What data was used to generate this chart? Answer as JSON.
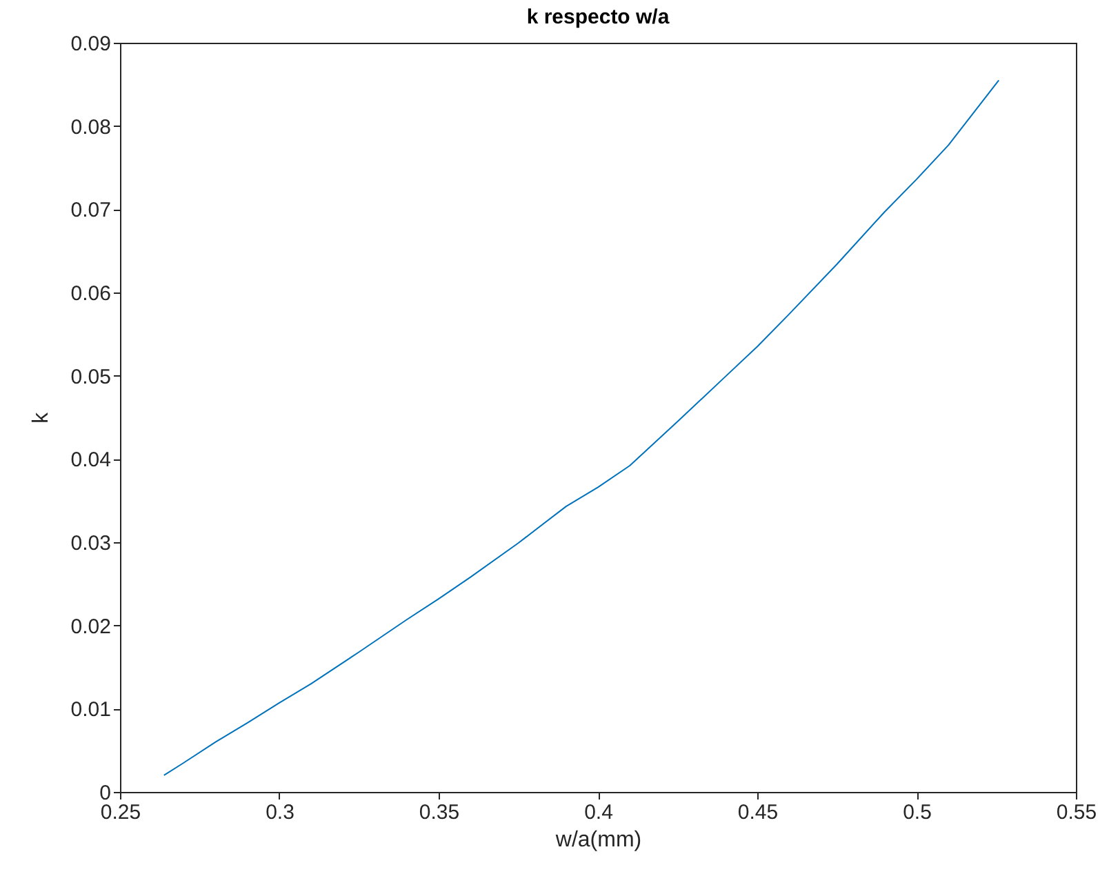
{
  "chart_data": {
    "type": "line",
    "title": "k respecto w/a",
    "xlabel": "w/a(mm)",
    "ylabel": "k",
    "x": [
      0.2638,
      0.27,
      0.28,
      0.29,
      0.3,
      0.31,
      0.325,
      0.34,
      0.35,
      0.36,
      0.375,
      0.39,
      0.4,
      0.41,
      0.425,
      0.44,
      0.45,
      0.46,
      0.475,
      0.49,
      0.5,
      0.51,
      0.5258
    ],
    "series": [
      {
        "color": "#0072bd",
        "values": [
          0.002,
          0.0035,
          0.006,
          0.0083,
          0.0107,
          0.013,
          0.0168,
          0.0207,
          0.0232,
          0.0258,
          0.0299,
          0.0343,
          0.0366,
          0.0392,
          0.0445,
          0.0499,
          0.0535,
          0.0574,
          0.0634,
          0.0697,
          0.0736,
          0.0777,
          0.0855
        ]
      }
    ],
    "xlim": [
      0.25,
      0.55
    ],
    "xticks": [
      0.25,
      0.3,
      0.35,
      0.4,
      0.45,
      0.5,
      0.55
    ],
    "ylim": [
      0,
      0.09
    ],
    "yticks": [
      0,
      0.01,
      0.02,
      0.03,
      0.04,
      0.05,
      0.06,
      0.07,
      0.08,
      0.09
    ],
    "grid": false,
    "marker": "none",
    "line_style": "solid"
  }
}
